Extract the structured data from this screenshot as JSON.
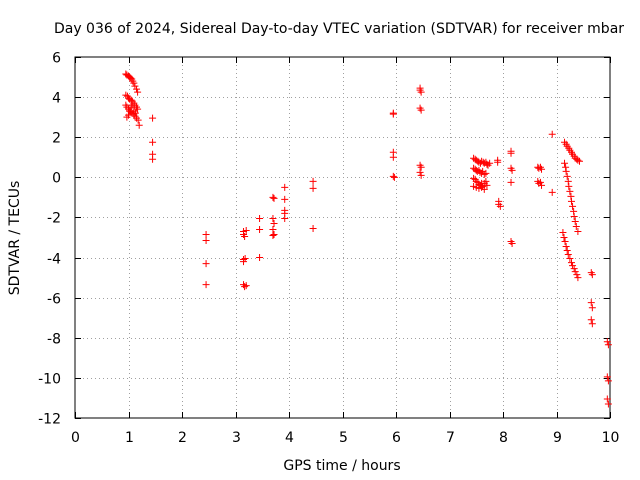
{
  "chart_data": {
    "type": "scatter",
    "title": "Day 036 of 2024, Sidereal Day-to-day VTEC variation (SDTVAR) for receiver mbar",
    "xlabel": "GPS time / hours",
    "ylabel": "SDTVAR / TECUs",
    "xlim": [
      0,
      10
    ],
    "ylim": [
      -12,
      6
    ],
    "xticks": [
      "0",
      "1",
      "2",
      "3",
      "4",
      "5",
      "6",
      "7",
      "8",
      "9",
      "10"
    ],
    "yticks": [
      "-12",
      "-10",
      "-8",
      "-6",
      "-4",
      "-2",
      "0",
      "2",
      "4",
      "6"
    ],
    "grid": true,
    "marker": "plus",
    "color": "#ff0000",
    "series": [
      {
        "name": "SDTVAR",
        "points": [
          [
            0.95,
            5.15
          ],
          [
            0.97,
            5.1
          ],
          [
            1.0,
            5.05
          ],
          [
            1.02,
            5.0
          ],
          [
            1.04,
            4.95
          ],
          [
            1.06,
            4.9
          ],
          [
            1.08,
            4.8
          ],
          [
            1.1,
            4.7
          ],
          [
            1.12,
            4.55
          ],
          [
            1.15,
            4.4
          ],
          [
            1.17,
            4.25
          ],
          [
            0.95,
            4.1
          ],
          [
            0.98,
            4.05
          ],
          [
            1.0,
            3.95
          ],
          [
            1.02,
            3.9
          ],
          [
            1.05,
            3.85
          ],
          [
            1.07,
            3.8
          ],
          [
            1.1,
            3.7
          ],
          [
            1.12,
            3.6
          ],
          [
            1.15,
            3.5
          ],
          [
            1.17,
            3.4
          ],
          [
            0.95,
            3.6
          ],
          [
            0.97,
            3.5
          ],
          [
            1.0,
            3.4
          ],
          [
            1.02,
            3.3
          ],
          [
            1.05,
            3.25
          ],
          [
            1.08,
            3.2
          ],
          [
            1.1,
            3.15
          ],
          [
            1.12,
            3.05
          ],
          [
            1.15,
            2.95
          ],
          [
            1.18,
            2.85
          ],
          [
            1.2,
            2.6
          ],
          [
            0.97,
            3.0
          ],
          [
            1.0,
            3.1
          ],
          [
            1.03,
            3.3
          ],
          [
            1.05,
            3.5
          ],
          [
            1.07,
            3.6
          ],
          [
            1.1,
            3.3
          ],
          [
            1.13,
            3.2
          ],
          [
            1.45,
            2.95
          ],
          [
            1.45,
            1.75
          ],
          [
            1.45,
            1.15
          ],
          [
            1.45,
            0.9
          ],
          [
            2.45,
            -2.85
          ],
          [
            2.45,
            -3.15
          ],
          [
            2.45,
            -4.3
          ],
          [
            2.45,
            -5.35
          ],
          [
            3.15,
            -2.7
          ],
          [
            3.15,
            -2.85
          ],
          [
            3.17,
            -2.95
          ],
          [
            3.2,
            -2.65
          ],
          [
            3.15,
            -4.1
          ],
          [
            3.15,
            -4.2
          ],
          [
            3.18,
            -4.05
          ],
          [
            3.15,
            -5.35
          ],
          [
            3.17,
            -5.45
          ],
          [
            3.2,
            -5.4
          ],
          [
            3.45,
            -2.05
          ],
          [
            3.45,
            -2.6
          ],
          [
            3.45,
            -4.0
          ],
          [
            3.7,
            -1.0
          ],
          [
            3.72,
            -1.05
          ],
          [
            3.7,
            -2.05
          ],
          [
            3.72,
            -2.3
          ],
          [
            3.7,
            -2.6
          ],
          [
            3.72,
            -2.85
          ],
          [
            3.7,
            -2.9
          ],
          [
            3.92,
            -0.5
          ],
          [
            3.92,
            -1.1
          ],
          [
            3.92,
            -1.65
          ],
          [
            3.92,
            -1.8
          ],
          [
            3.92,
            -2.05
          ],
          [
            4.45,
            -0.2
          ],
          [
            4.45,
            -0.55
          ],
          [
            4.45,
            -2.55
          ],
          [
            5.95,
            3.2
          ],
          [
            5.95,
            3.15
          ],
          [
            5.95,
            1.25
          ],
          [
            5.95,
            1.0
          ],
          [
            5.95,
            0.05
          ],
          [
            5.97,
            0.0
          ],
          [
            6.45,
            4.45
          ],
          [
            6.45,
            4.35
          ],
          [
            6.47,
            4.25
          ],
          [
            6.45,
            3.45
          ],
          [
            6.47,
            3.35
          ],
          [
            6.45,
            0.6
          ],
          [
            6.47,
            0.5
          ],
          [
            6.45,
            0.25
          ],
          [
            6.47,
            0.1
          ],
          [
            7.45,
            0.95
          ],
          [
            7.48,
            0.9
          ],
          [
            7.5,
            0.85
          ],
          [
            7.53,
            0.8
          ],
          [
            7.55,
            0.75
          ],
          [
            7.58,
            0.7
          ],
          [
            7.6,
            0.8
          ],
          [
            7.63,
            0.75
          ],
          [
            7.65,
            0.7
          ],
          [
            7.68,
            0.75
          ],
          [
            7.7,
            0.65
          ],
          [
            7.45,
            0.45
          ],
          [
            7.48,
            0.4
          ],
          [
            7.5,
            0.35
          ],
          [
            7.52,
            0.3
          ],
          [
            7.55,
            0.35
          ],
          [
            7.57,
            0.25
          ],
          [
            7.6,
            0.2
          ],
          [
            7.62,
            0.3
          ],
          [
            7.65,
            0.15
          ],
          [
            7.68,
            0.2
          ],
          [
            7.45,
            -0.05
          ],
          [
            7.48,
            -0.1
          ],
          [
            7.5,
            -0.2
          ],
          [
            7.53,
            -0.25
          ],
          [
            7.55,
            -0.35
          ],
          [
            7.58,
            -0.4
          ],
          [
            7.6,
            -0.3
          ],
          [
            7.62,
            -0.45
          ],
          [
            7.65,
            -0.3
          ],
          [
            7.68,
            -0.2
          ],
          [
            7.45,
            -0.45
          ],
          [
            7.5,
            -0.5
          ],
          [
            7.55,
            -0.55
          ],
          [
            7.6,
            -0.5
          ],
          [
            7.65,
            -0.6
          ],
          [
            7.7,
            -0.4
          ],
          [
            7.72,
            0.6
          ],
          [
            7.75,
            0.7
          ],
          [
            7.9,
            0.85
          ],
          [
            7.9,
            0.75
          ],
          [
            7.92,
            -1.2
          ],
          [
            7.92,
            -1.35
          ],
          [
            7.95,
            -1.45
          ],
          [
            8.15,
            1.3
          ],
          [
            8.15,
            1.2
          ],
          [
            8.15,
            0.45
          ],
          [
            8.17,
            0.35
          ],
          [
            8.15,
            -0.25
          ],
          [
            8.15,
            -3.2
          ],
          [
            8.17,
            -3.3
          ],
          [
            8.65,
            0.5
          ],
          [
            8.67,
            0.45
          ],
          [
            8.7,
            0.5
          ],
          [
            8.72,
            0.4
          ],
          [
            8.65,
            -0.2
          ],
          [
            8.67,
            -0.3
          ],
          [
            8.7,
            -0.25
          ],
          [
            8.72,
            -0.4
          ],
          [
            8.92,
            2.15
          ],
          [
            8.92,
            -0.75
          ],
          [
            9.15,
            1.75
          ],
          [
            9.18,
            1.65
          ],
          [
            9.2,
            1.55
          ],
          [
            9.23,
            1.45
          ],
          [
            9.25,
            1.35
          ],
          [
            9.28,
            1.25
          ],
          [
            9.3,
            1.15
          ],
          [
            9.33,
            1.05
          ],
          [
            9.35,
            0.95
          ],
          [
            9.38,
            0.9
          ],
          [
            9.4,
            0.85
          ],
          [
            9.43,
            0.8
          ],
          [
            9.15,
            0.7
          ],
          [
            9.17,
            0.5
          ],
          [
            9.18,
            0.3
          ],
          [
            9.2,
            0.05
          ],
          [
            9.22,
            -0.2
          ],
          [
            9.23,
            -0.45
          ],
          [
            9.25,
            -0.7
          ],
          [
            9.27,
            -0.95
          ],
          [
            9.28,
            -1.2
          ],
          [
            9.3,
            -1.45
          ],
          [
            9.32,
            -1.7
          ],
          [
            9.33,
            -1.95
          ],
          [
            9.35,
            -2.2
          ],
          [
            9.37,
            -2.45
          ],
          [
            9.4,
            -2.7
          ],
          [
            9.12,
            -2.75
          ],
          [
            9.14,
            -3.0
          ],
          [
            9.16,
            -3.2
          ],
          [
            9.18,
            -3.45
          ],
          [
            9.2,
            -3.65
          ],
          [
            9.22,
            -3.85
          ],
          [
            9.25,
            -4.05
          ],
          [
            9.28,
            -4.25
          ],
          [
            9.3,
            -4.4
          ],
          [
            9.33,
            -4.55
          ],
          [
            9.35,
            -4.7
          ],
          [
            9.38,
            -4.85
          ],
          [
            9.4,
            -5.0
          ],
          [
            9.65,
            -4.75
          ],
          [
            9.67,
            -4.85
          ],
          [
            9.65,
            -6.25
          ],
          [
            9.67,
            -6.5
          ],
          [
            9.65,
            -7.1
          ],
          [
            9.67,
            -7.3
          ],
          [
            9.95,
            -8.2
          ],
          [
            9.97,
            -8.35
          ],
          [
            9.95,
            -9.95
          ],
          [
            9.97,
            -10.15
          ],
          [
            9.95,
            -11.05
          ],
          [
            9.97,
            -11.3
          ]
        ]
      }
    ]
  }
}
